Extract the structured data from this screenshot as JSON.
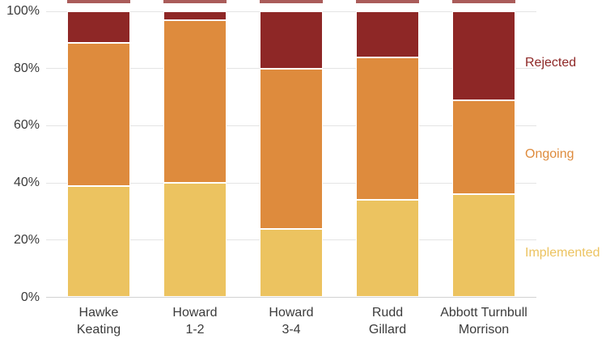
{
  "chart_data": {
    "type": "bar",
    "stacked": true,
    "orientation": "vertical",
    "title": "",
    "xlabel": "",
    "ylabel": "",
    "unit": "%",
    "categories": [
      "Hawke Keating",
      "Howard 1-2",
      "Howard 3-4",
      "Rudd Gillard",
      "Abbott Turnbull Morrison"
    ],
    "category_label_lines": [
      [
        "Hawke",
        "Keating"
      ],
      [
        "Howard",
        "1-2"
      ],
      [
        "Howard",
        "3-4"
      ],
      [
        "Rudd",
        "Gillard"
      ],
      [
        "Abbott Turnbull",
        "Morrison"
      ]
    ],
    "series": [
      {
        "name": "Implemented",
        "color": "#ECC360",
        "values": [
          39,
          40,
          24,
          34,
          36
        ]
      },
      {
        "name": "Ongoing",
        "color": "#DE8B3D",
        "values": [
          50,
          57,
          56,
          50,
          33
        ]
      },
      {
        "name": "Rejected",
        "color": "#8E2726",
        "values": [
          11,
          3,
          20,
          16,
          31
        ]
      }
    ],
    "y_axis": {
      "min": 0,
      "max": 100,
      "tick_labels": [
        "0%",
        "20%",
        "40%",
        "60%",
        "80%",
        "100%"
      ],
      "tick_values": [
        0,
        20,
        40,
        60,
        80,
        100
      ],
      "grid": true
    },
    "legend": {
      "position": "right",
      "entries": [
        "Rejected",
        "Ongoing",
        "Implemented"
      ]
    }
  },
  "colors": {
    "background": "#ffffff",
    "axis_text": "#3b3b3b",
    "gridline": "#e4e4e4",
    "baseline": "#d2d2d2",
    "segment_border": "#ffffff",
    "crop_remnant": "#8e2623"
  }
}
